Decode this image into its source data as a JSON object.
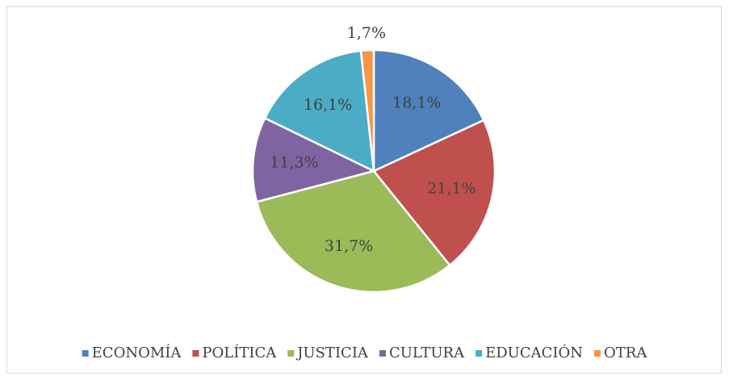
{
  "chart_data": {
    "type": "pie",
    "categories": [
      "ECONOMÍA",
      "POLÍTICA",
      "JUSTICIA",
      "CULTURA",
      "EDUCACIÓN",
      "OTRA"
    ],
    "values": [
      18.1,
      21.1,
      31.7,
      11.3,
      16.1,
      1.7
    ],
    "value_labels": [
      "18,1%",
      "21,1%",
      "31,7%",
      "11,3%",
      "16,1%",
      "1,7%"
    ],
    "colors": [
      "#4f81bd",
      "#c0504d",
      "#9bbb59",
      "#8064a2",
      "#4bacc6",
      "#f79646"
    ],
    "legend": "bottom"
  }
}
